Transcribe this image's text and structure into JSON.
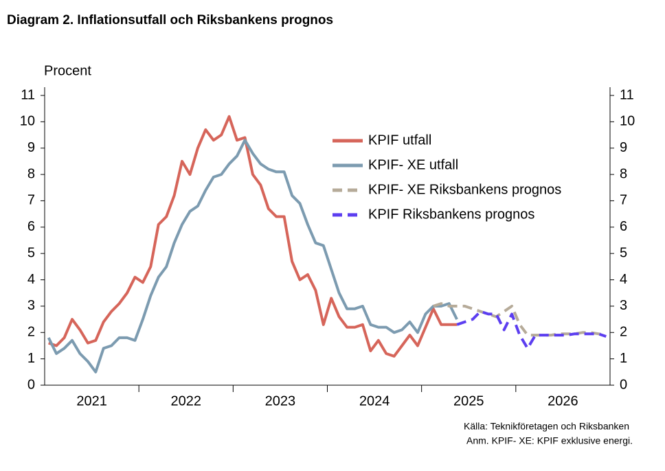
{
  "chart_data": {
    "type": "line",
    "title": "Diagram 2. Inflationsutfall och Riksbankens prognos",
    "y_label": "Procent",
    "categories": [
      "2021",
      null,
      null,
      null,
      null,
      null,
      null,
      null,
      null,
      null,
      null,
      null,
      "2022",
      null,
      null,
      null,
      null,
      null,
      null,
      null,
      null,
      null,
      null,
      null,
      "2023",
      null,
      null,
      null,
      null,
      null,
      null,
      null,
      null,
      null,
      null,
      null,
      "2024",
      null,
      null,
      null,
      null,
      null,
      null,
      null,
      null,
      null,
      null,
      null,
      "2025",
      null,
      null,
      null,
      null,
      null,
      null,
      null,
      null,
      null,
      null,
      null,
      "2026",
      null,
      null,
      null,
      null,
      null,
      null,
      null,
      null,
      null,
      null,
      null
    ],
    "series": [
      {
        "name": "KPIF utfall",
        "color": "#d6655a",
        "dash": false,
        "values": [
          1.6,
          1.5,
          1.8,
          2.5,
          2.1,
          1.6,
          1.7,
          2.4,
          2.8,
          3.1,
          3.5,
          4.1,
          3.9,
          4.5,
          6.1,
          6.4,
          7.2,
          8.5,
          8.0,
          9.0,
          9.7,
          9.3,
          9.5,
          10.2,
          9.3,
          9.4,
          8.0,
          7.6,
          6.7,
          6.4,
          6.4,
          4.7,
          4.0,
          4.2,
          3.6,
          2.3,
          3.3,
          2.6,
          2.2,
          2.2,
          2.3,
          1.3,
          1.7,
          1.2,
          1.1,
          1.5,
          1.9,
          1.5,
          2.2,
          2.9,
          2.3,
          2.3,
          2.3,
          null,
          null,
          null,
          null,
          null,
          null,
          null,
          null,
          null,
          null,
          null,
          null,
          null,
          null,
          null,
          null,
          null,
          null,
          null
        ]
      },
      {
        "name": "KPIF- XE utfall",
        "color": "#7c9bb0",
        "dash": false,
        "values": [
          1.8,
          1.2,
          1.4,
          1.7,
          1.2,
          0.9,
          0.5,
          1.4,
          1.5,
          1.8,
          1.8,
          1.7,
          2.5,
          3.4,
          4.1,
          4.5,
          5.4,
          6.1,
          6.6,
          6.8,
          7.4,
          7.9,
          8.0,
          8.4,
          8.7,
          9.3,
          8.8,
          8.4,
          8.2,
          8.1,
          8.1,
          7.2,
          6.9,
          6.1,
          5.4,
          5.3,
          4.4,
          3.5,
          2.9,
          2.9,
          3.0,
          2.3,
          2.2,
          2.2,
          2.0,
          2.1,
          2.4,
          2.0,
          2.7,
          3.0,
          3.0,
          3.1,
          2.5,
          null,
          null,
          null,
          null,
          null,
          null,
          null,
          null,
          null,
          null,
          null,
          null,
          null,
          null,
          null,
          null,
          null,
          null,
          null
        ]
      },
      {
        "name": "KPIF- XE Riksbankens prognos",
        "color": "#b6ab99",
        "dash": true,
        "values": [
          null,
          null,
          null,
          null,
          null,
          null,
          null,
          null,
          null,
          null,
          null,
          null,
          null,
          null,
          null,
          null,
          null,
          null,
          null,
          null,
          null,
          null,
          null,
          null,
          null,
          null,
          null,
          null,
          null,
          null,
          null,
          null,
          null,
          null,
          null,
          null,
          null,
          null,
          null,
          null,
          null,
          null,
          null,
          null,
          null,
          null,
          null,
          null,
          null,
          3.0,
          3.1,
          3.0,
          3.0,
          3.0,
          2.9,
          2.8,
          2.7,
          2.6,
          2.8,
          3.0,
          2.3,
          1.9,
          1.9,
          1.9,
          1.9,
          1.95,
          1.95,
          1.95,
          2.0,
          2.0,
          1.95,
          1.9
        ]
      },
      {
        "name": "KPIF Riksbankens prognos",
        "color": "#5c3ef0",
        "dash": true,
        "values": [
          null,
          null,
          null,
          null,
          null,
          null,
          null,
          null,
          null,
          null,
          null,
          null,
          null,
          null,
          null,
          null,
          null,
          null,
          null,
          null,
          null,
          null,
          null,
          null,
          null,
          null,
          null,
          null,
          null,
          null,
          null,
          null,
          null,
          null,
          null,
          null,
          null,
          null,
          null,
          null,
          null,
          null,
          null,
          null,
          null,
          null,
          null,
          null,
          null,
          null,
          null,
          null,
          2.3,
          2.4,
          2.5,
          2.8,
          2.7,
          2.7,
          2.1,
          2.7,
          1.9,
          1.4,
          1.9,
          1.9,
          1.9,
          1.9,
          1.9,
          1.95,
          1.95,
          1.95,
          1.95,
          1.85
        ]
      }
    ],
    "ylim": [
      0,
      11
    ],
    "yticks": [
      0,
      1,
      2,
      3,
      4,
      5,
      6,
      7,
      8,
      9,
      10,
      11
    ],
    "y2lim": [
      0,
      11
    ],
    "y2ticks": [
      0,
      1,
      2,
      3,
      4,
      5,
      6,
      7,
      8,
      9,
      10,
      11
    ],
    "grid": false,
    "legend": "upper right",
    "notes": [
      "Källa: Teknikföretagen och Riksbanken",
      "Anm. KPIF- XE: KPIF exklusive energi."
    ]
  }
}
